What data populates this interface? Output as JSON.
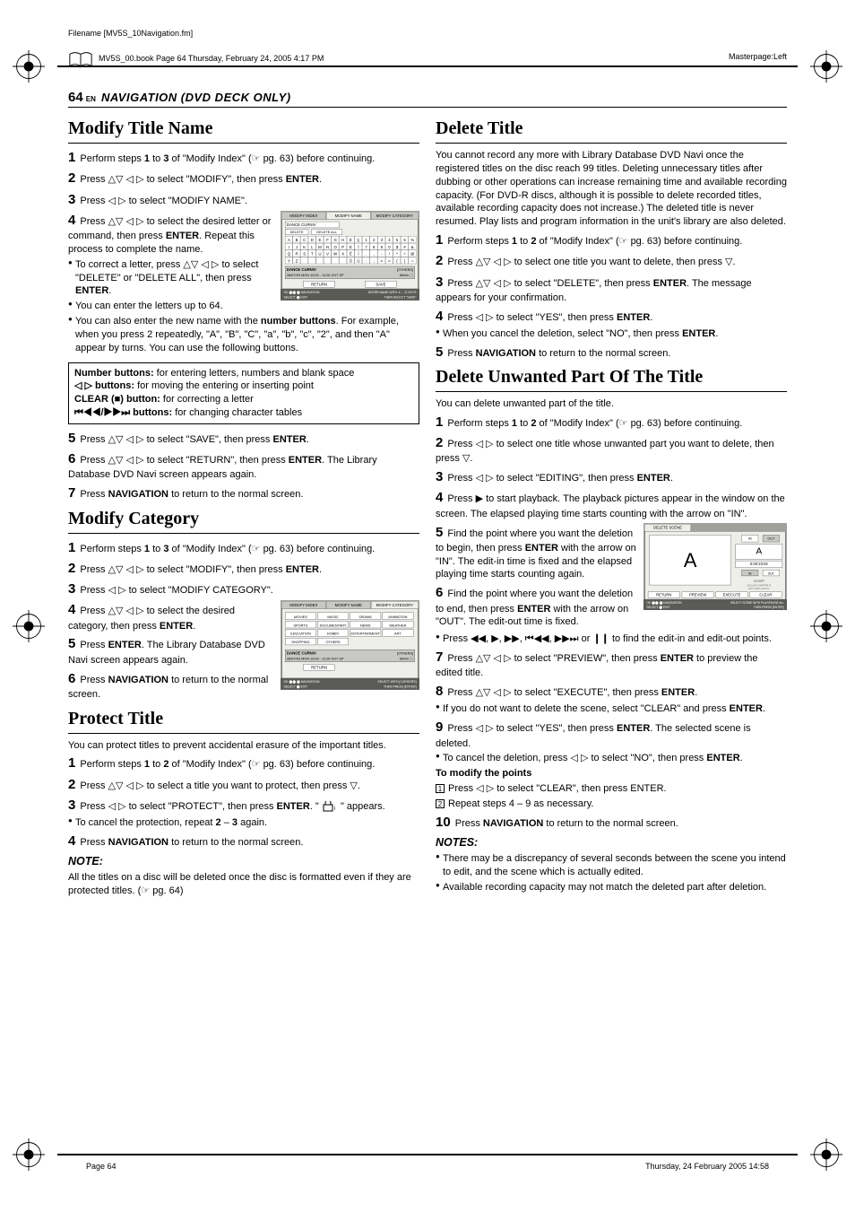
{
  "meta": {
    "filename": "Filename [MV5S_10Navigation.fm]",
    "masterpage": "Masterpage:Left",
    "bookinfo": "MV5S_00.book  Page 64  Thursday, February 24, 2005  4:17 PM",
    "footer_page": "Page 64",
    "footer_date": "Thursday, 24 February 2005  14:58"
  },
  "header": {
    "pagenum": "64",
    "en": "EN",
    "section": "NAVIGATION (DVD DECK ONLY)"
  },
  "style": {
    "text_color": "#000000",
    "background": "#ffffff",
    "grey": "#a0a09c",
    "darkgrey": "#5a5a56",
    "box_border": "#000000"
  },
  "h": {
    "modifyTitle": "Modify Title Name",
    "modifyCategory": "Modify Category",
    "protectTitle": "Protect Title",
    "deleteTitle": "Delete Title",
    "deleteUnwanted": "Delete Unwanted Part Of The Title"
  },
  "t": {
    "mt1": " Perform steps 1 to 3 of \"Modify Index\" (☞ pg. 63) before continuing.",
    "mt2": " Press △▽ ◁ ▷ to select \"MODIFY\", then press ENTER.",
    "mt3": " Press ◁ ▷ to select \"MODIFY NAME\".",
    "mt4": " Press △▽ ◁ ▷ to select the desired letter or command, then press ENTER. Repeat this process to complete the name.",
    "mt4b1": "To correct a letter, press △▽ ◁ ▷ to select \"DELETE\" or \"DELETE ALL\", then press ENTER.",
    "mt4b2": "You can enter the letters up to 64.",
    "mt4b3a": "You can also enter the new name with the ",
    "mt4b3b": "number buttons",
    "mt4b3c": ". For example, when you press 2 repeatedly, \"A\", \"B\", \"C\", \"a\", \"b\", \"c\", \"2\", and then \"A\" appear by turns. You can use the following buttons.",
    "box_numbtn": "Number buttons:",
    "box_numtxt": " for entering letters, numbers and blank space",
    "box_lr": "◁ ▷ buttons:",
    "box_lrtxt": " for moving the entering or inserting point",
    "box_clear": "CLEAR (■) button:",
    "box_cleartxt": " for correcting a letter",
    "box_skip": "⏮◀◀/▶▶⏭ buttons:",
    "box_skiptxt": " for changing character tables",
    "mt5": " Press △▽ ◁ ▷ to select \"SAVE\", then press ENTER.",
    "mt6": " Press △▽ ◁ ▷ to select \"RETURN\", then press ENTER. The Library Database DVD Navi screen appears again.",
    "mt7": " Press NAVIGATION to return to the normal screen.",
    "mc1": " Perform steps 1 to 3 of \"Modify Index\" (☞ pg. 63) before continuing.",
    "mc2": " Press △▽ ◁ ▷ to select \"MODIFY\", then press ENTER.",
    "mc3": " Press ◁ ▷ to select \"MODIFY CATEGORY\".",
    "mc4": " Press △▽ ◁ ▷ to select the desired category, then press ENTER.",
    "mc5": " Press ENTER. The Library Database DVD Navi screen appears again.",
    "mc6": " Press NAVIGATION to return to the normal screen.",
    "pt_intro": "You can protect titles to prevent accidental erasure of the important titles.",
    "pt1": " Perform steps 1 to 2 of \"Modify Index\" (☞ pg. 63) before continuing.",
    "pt2": " Press △▽ ◁ ▷ to select a title you want to protect, then press ▽.",
    "pt3": " Press ◁ ▷ to select \"PROTECT\", then press ENTER. \"",
    "pt3b": "\" appears.",
    "pt_b1": "To cancel the protection, repeat 2 – 3 again.",
    "pt4": " Press NAVIGATION to return to the normal screen.",
    "pt_note_h": "NOTE:",
    "pt_note": "All the titles on a disc will be deleted once the disc is formatted even if they are protected titles. (☞ pg. 64)",
    "dt_intro": "You cannot record any more with Library Database DVD Navi once the registered titles on the disc reach 99 titles. Deleting unnecessary titles after dubbing or other operations can increase remaining time and available recording capacity. (For DVD-R discs, although it is possible to delete recorded titles, available recording capacity does not increase.) The deleted title is never resumed. Play lists and program information in the unit's library are also deleted.",
    "dt1": " Perform steps 1 to 2 of \"Modify Index\" (☞ pg. 63) before continuing.",
    "dt2": " Press △▽ ◁ ▷ to select one title you want to delete, then press ▽.",
    "dt3": " Press △▽ ◁ ▷ to select \"DELETE\", then press ENTER. The message appears for your confirmation.",
    "dt4": " Press ◁ ▷ to select \"YES\", then press ENTER.",
    "dt4b": "When you cancel the deletion, select \"NO\", then press ENTER.",
    "dt5": " Press NAVIGATION to return to the normal screen.",
    "du_intro": "You can delete unwanted part of the title.",
    "du1": " Perform steps 1 to 2 of \"Modify Index\" (☞ pg. 63) before continuing.",
    "du2": " Press ◁ ▷ to select one title whose unwanted part you want to delete, then press ▽.",
    "du3": " Press ◁ ▷ to select \"EDITING\", then press ENTER.",
    "du4": " Press ▶ to start playback. The playback pictures appear in the window on the screen. The elapsed playing time starts counting with the arrow on \"IN\".",
    "du5": " Find the point where you want the deletion to begin, then press ENTER with the arrow on \"IN\". The edit-in time is fixed and the elapsed playing time starts counting again.",
    "du6": " Find the point where you want the deletion to end, then press ENTER with the arrow on \"OUT\". The edit-out time is fixed.",
    "du6b": "Press ◀◀, ▶, ▶▶, ⏮◀◀, ▶▶⏭ or ❙❙ to find the edit-in and edit-out points.",
    "du7": " Press △▽ ◁ ▷ to select \"PREVIEW\", then press ENTER to preview the edited title.",
    "du8": " Press △▽ ◁ ▷ to select \"EXECUTE\", then press ENTER.",
    "du8b": "If you do not want to delete the scene, select \"CLEAR\" and press ENTER.",
    "du9": " Press ◁ ▷ to select \"YES\", then press ENTER. The selected scene is deleted.",
    "du9b": "To cancel the deletion, press ◁ ▷ to select \"NO\", then press ENTER.",
    "du_modpts": "To modify the points",
    "du_mp1": "Press ◁ ▷ to select \"CLEAR\", then press ENTER.",
    "du_mp2": "Repeat steps 4 – 9 as necessary.",
    "du10": " Press NAVIGATION to return to the normal screen.",
    "notes_h": "NOTES:",
    "notes_b1": "There may be a discrepancy of several seconds between the scene you intend to edit, and the scene which is actually edited.",
    "notes_b2": "Available recording capacity may not match the deleted part after deletion."
  },
  "fig1": {
    "tabs": [
      "MODIFY INDEX",
      "MODIFY NAME",
      "MODIFY CATEGORY"
    ],
    "title_field": "DANCE CURNIV",
    "delete": "DELETE",
    "deleteall": "DELETE ALL",
    "rows": [
      [
        "A",
        "B",
        "C",
        "D",
        "E",
        "F",
        "G",
        "H",
        "É",
        "Ç",
        "1",
        "2",
        "3",
        "4",
        "5",
        "6",
        "%"
      ],
      [
        "I",
        "J",
        "K",
        "L",
        "M",
        "N",
        "O",
        "P",
        "È",
        "Î",
        "7",
        "8",
        "9",
        "0",
        "$",
        "#",
        "&"
      ],
      [
        "Q",
        "R",
        "S",
        "T",
        "U",
        "V",
        "W",
        "X",
        "Ê",
        "Ï",
        ".",
        ",",
        "-",
        "/",
        "*",
        "+",
        "@"
      ],
      [
        "Y",
        "Z",
        " ",
        " ",
        " ",
        " ",
        " ",
        " ",
        "Ô",
        "Û",
        ":",
        ";",
        "<",
        ">",
        "(",
        ")",
        "="
      ]
    ],
    "info": "DANCE CURNIV",
    "date": "28/07/03 MON 10:00 - 11:00    CH7 SP",
    "others": "[OTHERS]\n60min  ",
    "return": "RETURN",
    "save": "SAVE",
    "footer_l": "OK          NAVIGATION\nSELECT            EXIT",
    "footer_r": "ENTER NAME WITH ① – ⓪ KEYS\nTHEN SELECT \"SAVE\""
  },
  "fig2": {
    "tabs": [
      "MODIFY INDEX",
      "MODIFY NAME",
      "MODIFY CATEGORY"
    ],
    "cats": [
      [
        "MOVIES",
        "MUSIC",
        "DRAMA",
        "ANIMATION"
      ],
      [
        "SPORTS",
        "DOCUMENTARY",
        "NEWS",
        "WEATHER"
      ],
      [
        "EDUCATION",
        "HOBBY",
        "ENTERTAINMENT",
        "ART"
      ],
      [
        "SHOPPING",
        "OTHERS",
        "",
        ""
      ]
    ],
    "info": "DANCE CURNIV",
    "date": "28/07/03 MON 10:00 - 11:00    CH7 SP",
    "others": "[OTHERS]\n60min  ",
    "return": "RETURN",
    "footer_l": "OK          NAVIGATION\nSELECT            EXIT",
    "footer_r": "SELECT WITH [CURSORS]\nTHEN PRESS [ENTER]"
  },
  "fig3": {
    "tab": "DELETE SCENE",
    "bigA": "A",
    "in_lbl": "IN",
    "out_lbl": "OUT",
    "time": "0:00:23:04",
    "smallA": "A",
    "secs_lbl": "1 2 3      13:10:07",
    "hint": "COLLING CHAPTER IS\n  NOT LESS red/1min",
    "buttons": [
      "RETURN",
      "PREVIEW",
      "EXECUTE",
      "CLEAR"
    ],
    "footer_l": "OK          NAVIGATION\nSELECT            EXIT",
    "footer_r": "SELECT SCENE WITH PLAY/PAUSE etc.\nTHEN PRESS [ENTER]"
  }
}
